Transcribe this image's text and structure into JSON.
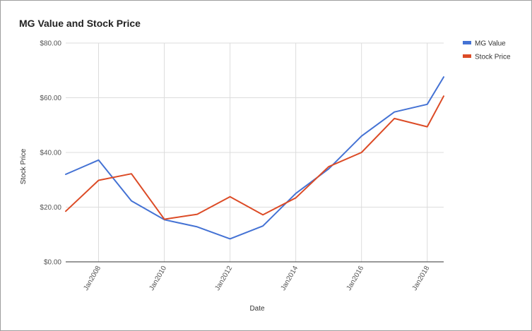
{
  "chart_data": {
    "type": "line",
    "title": "MG Value and Stock Price",
    "xlabel": "Date",
    "ylabel": "Stock Price",
    "x": [
      "2007-01",
      "2008-01",
      "2009-01",
      "2010-01",
      "2011-01",
      "2012-01",
      "2013-01",
      "2014-01",
      "2015-01",
      "2016-01",
      "2017-01",
      "2018-01",
      "2018-07"
    ],
    "x_range": [
      "2007-01",
      "2018-07"
    ],
    "x_ticks": [
      "2008-01",
      "2010-01",
      "2012-01",
      "2014-01",
      "2016-01",
      "2018-01"
    ],
    "x_tick_labels": [
      "Jan2008",
      "Jan2010",
      "Jan2012",
      "Jan2014",
      "Jan2016",
      "Jan2018"
    ],
    "ylim": [
      0,
      80
    ],
    "y_ticks": [
      0,
      20,
      40,
      60,
      80
    ],
    "y_tick_labels": [
      "$0.00",
      "$20.00",
      "$40.00",
      "$60.00",
      "$80.00"
    ],
    "grid": true,
    "legend_position": "right",
    "series": [
      {
        "name": "MG Value",
        "color": "#4472d4",
        "values": [
          32.0,
          37.2,
          22.3,
          15.4,
          12.8,
          8.4,
          13.1,
          25.0,
          34.0,
          46.0,
          54.8,
          57.6,
          67.6
        ]
      },
      {
        "name": "Stock Price",
        "color": "#dc4b26",
        "values": [
          18.5,
          29.8,
          32.2,
          15.6,
          17.4,
          23.8,
          17.2,
          23.4,
          34.8,
          40.0,
          52.4,
          49.4,
          60.6
        ]
      }
    ]
  }
}
